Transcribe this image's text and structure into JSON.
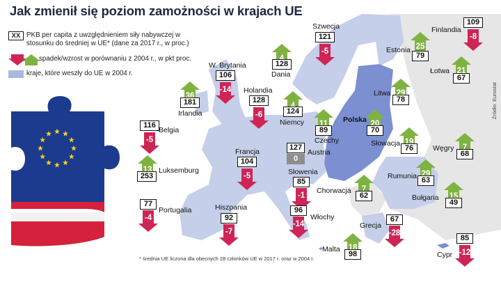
{
  "title": "Jak zmienił się poziom zamożności w krajach UE",
  "legend": {
    "box_sample": "XX",
    "gdp_text": "PKB per capita z uwzględnieniem siły nabywczej w stosunku do średniej w UE* (dane za 2017 r., w proc.)",
    "arrows_text": "spadek/wzrost w porównaniu z 2004 r., w pkt proc.",
    "joined_text": "kraje, które weszły do UE w 2004 r."
  },
  "source": "Źródło: Eurostat",
  "footnote": "* średnia UE liczona dla obecnych 28 członków UE w 2017 r. oraz w 2004 r.",
  "colors": {
    "up": "#7fb241",
    "down": "#cf2556",
    "joined_2004": "#7b8fd1",
    "eu_other": "#c5cfe9",
    "non_eu": "#e6e6e6",
    "sea": "#ffffff"
  },
  "countries": [
    {
      "name": "Szwecja",
      "gdp": "121",
      "change": "-5"
    },
    {
      "name": "Finlandia",
      "gdp": "109",
      "change": "-8"
    },
    {
      "name": "Dania",
      "gdp": "128",
      "change": "4"
    },
    {
      "name": "Estonia",
      "gdp": "79",
      "change": "25"
    },
    {
      "name": "Łotwa",
      "gdp": "67",
      "change": "21"
    },
    {
      "name": "W. Brytania",
      "gdp": "106",
      "change": "-14"
    },
    {
      "name": "Irlandia",
      "gdp": "181",
      "change": "36"
    },
    {
      "name": "Holandia",
      "gdp": "128",
      "change": "-6"
    },
    {
      "name": "Niemcy",
      "gdp": "124",
      "change": "4"
    },
    {
      "name": "Litwa",
      "gdp": "78",
      "change": "29"
    },
    {
      "name": "Belgia",
      "gdp": "116",
      "change": "-5"
    },
    {
      "name": "Czechy",
      "gdp": "89",
      "change": "11"
    },
    {
      "name": "Polska",
      "gdp": "70",
      "change": "20"
    },
    {
      "name": "Słowacja",
      "gdp": "76",
      "change": "19"
    },
    {
      "name": "Węgry",
      "gdp": "68",
      "change": "7"
    },
    {
      "name": "Luksemburg",
      "gdp": "253",
      "change": "13"
    },
    {
      "name": "Francja",
      "gdp": "104",
      "change": "-5"
    },
    {
      "name": "Austria",
      "gdp": "127",
      "change": "0"
    },
    {
      "name": "Słowenia",
      "gdp": "85",
      "change": "-1"
    },
    {
      "name": "Rumunia",
      "gdp": "63",
      "change": "29"
    },
    {
      "name": "Chorwacja",
      "gdp": "62",
      "change": "7"
    },
    {
      "name": "Portugalia",
      "gdp": "77",
      "change": "-4"
    },
    {
      "name": "Hiszpania",
      "gdp": "92",
      "change": "-7"
    },
    {
      "name": "Włochy",
      "gdp": "96",
      "change": "-14"
    },
    {
      "name": "Bułgaria",
      "gdp": "49",
      "change": "15"
    },
    {
      "name": "Grecja",
      "gdp": "67",
      "change": "-28"
    },
    {
      "name": "Malta",
      "gdp": "98",
      "change": "18"
    },
    {
      "name": "Cypr",
      "gdp": "85",
      "change": "-12"
    }
  ]
}
